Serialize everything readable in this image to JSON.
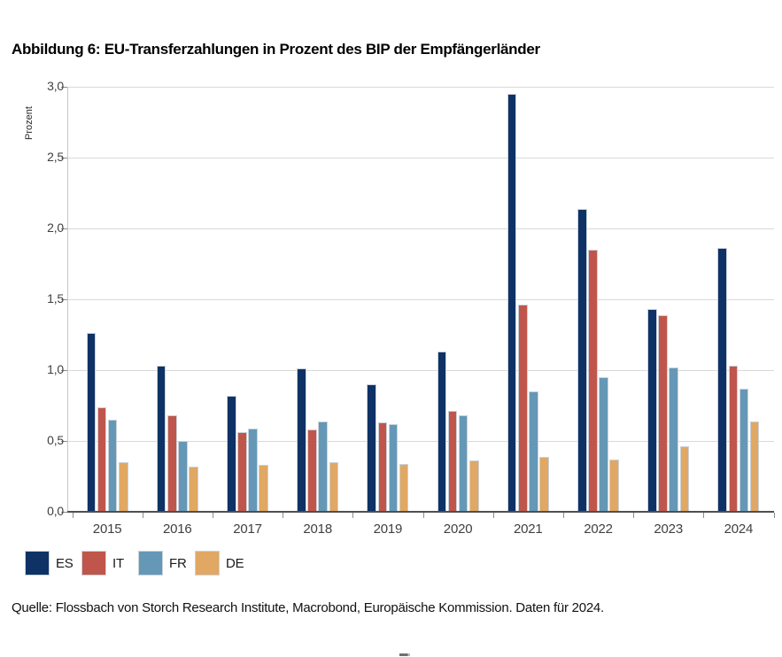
{
  "title": "Abbildung 6: EU-Transferzahlungen in Prozent des BIP der Empfängerländer",
  "source": "Quelle: Flossbach von Storch Research Institute, Macrobond, Europäische Kommission. Daten für 2024.",
  "chart_data": {
    "type": "bar",
    "title": "Abbildung 6: EU-Transferzahlungen in Prozent des BIP der Empfängerländer",
    "xlabel": "",
    "ylabel": "Prozent",
    "categories": [
      "2015",
      "2016",
      "2017",
      "2018",
      "2019",
      "2020",
      "2021",
      "2022",
      "2023",
      "2024"
    ],
    "series": [
      {
        "name": "ES",
        "color": "#0e3266",
        "values": [
          1.26,
          1.03,
          0.82,
          1.01,
          0.9,
          1.13,
          2.95,
          2.14,
          1.43,
          1.86
        ]
      },
      {
        "name": "IT",
        "color": "#c0564b",
        "values": [
          0.74,
          0.68,
          0.56,
          0.58,
          0.63,
          0.71,
          1.46,
          1.85,
          1.39,
          1.03
        ]
      },
      {
        "name": "FR",
        "color": "#6598b6",
        "values": [
          0.65,
          0.5,
          0.59,
          0.64,
          0.62,
          0.68,
          0.85,
          0.95,
          1.02,
          0.87
        ]
      },
      {
        "name": "DE",
        "color": "#e0a863",
        "values": [
          0.35,
          0.32,
          0.33,
          0.35,
          0.34,
          0.36,
          0.39,
          0.37,
          0.46,
          0.64
        ]
      }
    ],
    "ylim": [
      0,
      3.0
    ],
    "ytick_step": 0.5,
    "ytick_labels": [
      "0,0",
      "0,5",
      "1,0",
      "1,5",
      "2,0",
      "2,5",
      "3,0"
    ],
    "grid": true,
    "legend_position": "bottom"
  }
}
